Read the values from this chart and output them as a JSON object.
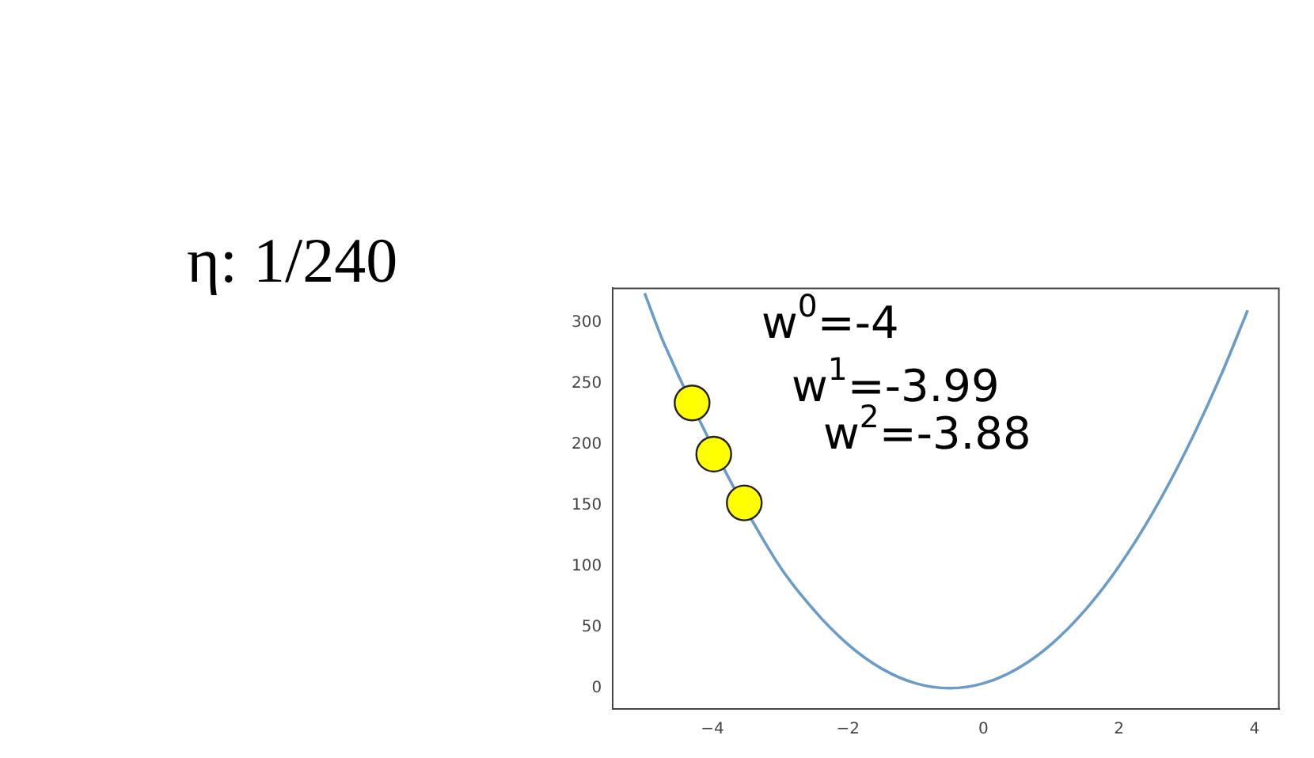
{
  "chart_data": {
    "type": "line",
    "x": [
      -5,
      -4.7,
      -3.1,
      -2.5,
      -2,
      -1.5,
      -1,
      -0.5,
      0,
      0.5,
      1,
      1.5,
      2,
      2.5,
      3,
      3.5,
      3.9
    ],
    "series": [
      {
        "color": "#6b9bc8",
        "marker": "none",
        "values": [
          324,
          281,
          108,
          64,
          36,
          16,
          4,
          0,
          4,
          16,
          36,
          64,
          100,
          144,
          196,
          256,
          310
        ]
      },
      {
        "type": "scatter",
        "color": "#ffff00",
        "marker": "circle",
        "x": [
          -4.3,
          -3.98,
          -3.53
        ],
        "values": [
          234,
          192,
          152
        ]
      }
    ],
    "xlim": [
      -5.47,
      4.36
    ],
    "xticks": [
      {
        "value": -4,
        "label": "−4"
      },
      {
        "value": -2,
        "label": "−2"
      },
      0,
      2,
      4
    ],
    "ylim": [
      -17,
      328
    ],
    "yticks": [
      0,
      50,
      100,
      150,
      200,
      250,
      300
    ],
    "grid": false,
    "legend": false,
    "annotations": [
      "η: 1/240",
      "w$^{0}$=-4",
      "w$^{1}$=-3.99",
      "w$^{2}$=-3.88"
    ]
  }
}
